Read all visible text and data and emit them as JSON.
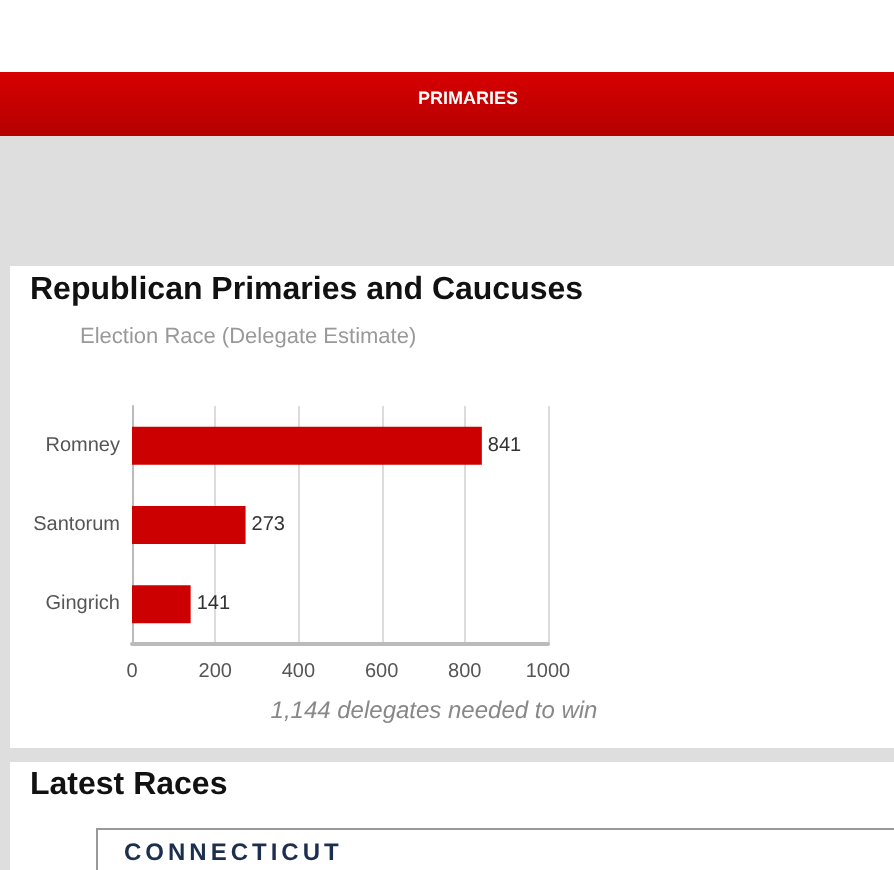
{
  "chart_data": {
    "type": "bar",
    "orientation": "horizontal",
    "title": "Republican Primaries and Caucuses",
    "subtitle": "Election Race (Delegate Estimate)",
    "annotations": [
      "PRIMARIES",
      "1,144 delegates needed to win",
      "Latest Races",
      "CONNECTICUT"
    ],
    "categories": [
      "Romney",
      "Santorum",
      "Gingrich"
    ],
    "values": [
      841,
      273,
      141
    ],
    "color": "#cc0000",
    "data_labels": true,
    "xlim": [
      0,
      1000
    ],
    "xticks": [
      0,
      200,
      400,
      600,
      800,
      1000
    ],
    "grid": "x"
  }
}
